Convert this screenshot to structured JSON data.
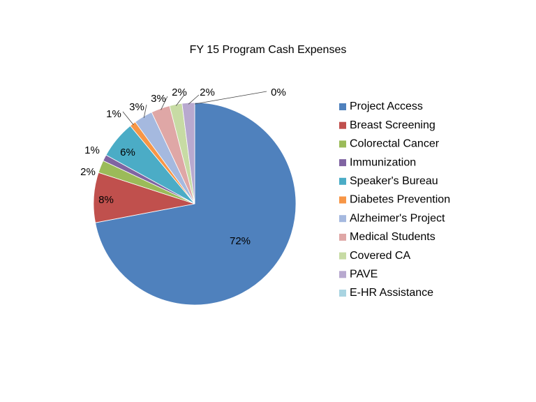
{
  "chart_data": {
    "type": "pie",
    "title": "FY 15 Program Cash Expenses",
    "legend_position": "right",
    "slices": [
      {
        "name": "Project Access",
        "value": 72,
        "label": "72%",
        "color": "#4f81bd"
      },
      {
        "name": "Breast Screening",
        "value": 8,
        "label": "8%",
        "color": "#c0504d"
      },
      {
        "name": "Colorectal Cancer",
        "value": 2,
        "label": "2%",
        "color": "#9bbb59"
      },
      {
        "name": "Immunization",
        "value": 1,
        "label": "1%",
        "color": "#8064a2"
      },
      {
        "name": "Speaker's Bureau",
        "value": 6,
        "label": "6%",
        "color": "#4bacc6"
      },
      {
        "name": "Diabetes Prevention",
        "value": 1,
        "label": "1%",
        "color": "#f79646"
      },
      {
        "name": "Alzheimer's Project",
        "value": 3,
        "label": "3%",
        "color": "#a5b9df"
      },
      {
        "name": "Medical Students",
        "value": 3,
        "label": "3%",
        "color": "#dfa7a6"
      },
      {
        "name": "Covered CA",
        "value": 2,
        "label": "2%",
        "color": "#c7dba4"
      },
      {
        "name": "PAVE",
        "value": 2,
        "label": "2%",
        "color": "#b8a9cf"
      },
      {
        "name": "E-HR Assistance",
        "value": 0,
        "label": "0%",
        "color": "#a9d4e1"
      }
    ]
  }
}
